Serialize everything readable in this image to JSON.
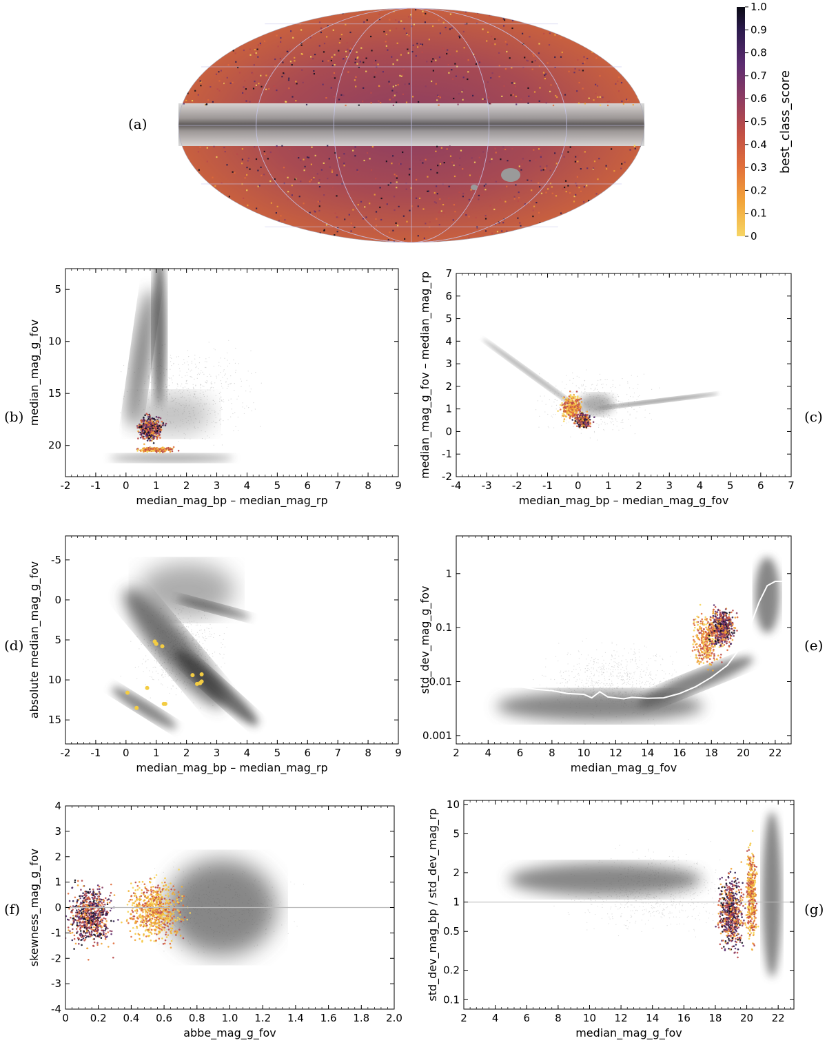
{
  "figure": {
    "colormap": [
      "#f5d45a",
      "#f0a437",
      "#e06b3a",
      "#b94a4a",
      "#8a3d62",
      "#5a2e6e",
      "#2e1d4e",
      "#0d0d1a"
    ],
    "background_color": "#c8c8c8"
  },
  "sky_map": {
    "label": "(a)",
    "colorbar": {
      "label": "best_class_score",
      "ticks": [
        "0",
        "0.1",
        "0.2",
        "0.3",
        "0.4",
        "0.5",
        "0.6",
        "0.7",
        "0.8",
        "0.9",
        "1.0"
      ]
    }
  },
  "chart_data": [
    {
      "id": "b",
      "label": "(b)",
      "type": "scatter",
      "xlabel": "median_mag_bp – median_mag_rp",
      "ylabel": "median_mag_g_fov",
      "xlim": [
        -2,
        9
      ],
      "ylim": [
        3,
        23
      ],
      "y_inverted": true,
      "xticks": [
        -2,
        -1,
        0,
        1,
        2,
        3,
        4,
        5,
        6,
        7,
        8,
        9
      ],
      "yticks": [
        5,
        10,
        15,
        20
      ],
      "yscale": "linear",
      "highlight_center": [
        0.7,
        18.5
      ]
    },
    {
      "id": "c",
      "label": "(c)",
      "type": "scatter",
      "xlabel": "median_mag_bp – median_mag_g_fov",
      "ylabel": "median_mag_g_fov – median_mag_rp",
      "xlim": [
        -4,
        7
      ],
      "ylim": [
        -2,
        7
      ],
      "y_inverted": false,
      "xticks": [
        -4,
        -3,
        -2,
        -1,
        0,
        1,
        2,
        3,
        4,
        5,
        6,
        7
      ],
      "yticks": [
        -2,
        -1,
        0,
        1,
        2,
        3,
        4,
        5,
        6,
        7
      ],
      "yscale": "linear",
      "highlight_center": [
        0.1,
        0.5
      ]
    },
    {
      "id": "d",
      "label": "(d)",
      "type": "scatter",
      "xlabel": "median_mag_bp – median_mag_rp",
      "ylabel": "absolute median_mag_g_fov",
      "xlim": [
        -2,
        9
      ],
      "ylim": [
        -8,
        18
      ],
      "y_inverted": true,
      "xticks": [
        -2,
        -1,
        0,
        1,
        2,
        3,
        4,
        5,
        6,
        7,
        8,
        9
      ],
      "yticks": [
        -5,
        0,
        5,
        10,
        15
      ],
      "ytick_labels": [
        "-5",
        "0",
        "5",
        "10",
        "15"
      ],
      "yscale": "linear",
      "highlight_points": [
        [
          0.95,
          5.2
        ],
        [
          1.0,
          5.5
        ],
        [
          1.2,
          5.8
        ],
        [
          2.2,
          9.4
        ],
        [
          2.5,
          9.3
        ],
        [
          2.5,
          10.2
        ],
        [
          2.35,
          10.5
        ],
        [
          2.45,
          10.4
        ],
        [
          0.05,
          11.6
        ],
        [
          0.7,
          11.0
        ],
        [
          0.35,
          13.5
        ],
        [
          1.25,
          13.0
        ],
        [
          1.3,
          13.0
        ]
      ]
    },
    {
      "id": "e",
      "label": "(e)",
      "type": "scatter",
      "xlabel": "median_mag_g_fov",
      "ylabel": "std_dev_mag_g_fov",
      "xlim": [
        2,
        23
      ],
      "ylim": [
        0.0007,
        5
      ],
      "y_inverted": false,
      "xticks": [
        2,
        4,
        6,
        8,
        10,
        12,
        14,
        16,
        18,
        20,
        22
      ],
      "yticks": [
        0.001,
        0.01,
        0.1,
        1
      ],
      "ytick_labels": [
        "0.001",
        "0.01",
        "0.1",
        "1"
      ],
      "yscale": "log",
      "highlight_center": [
        18.5,
        0.09
      ],
      "reference_curve": {
        "x": [
          6.0,
          7.0,
          8.0,
          9.0,
          10.0,
          10.5,
          11.0,
          11.5,
          12.0,
          12.5,
          13.0,
          14.0,
          15.0,
          16.0,
          17.0,
          18.0,
          19.0,
          20.0,
          20.5,
          21.0,
          21.5,
          22.0,
          23.0
        ],
        "y": [
          0.008,
          0.0072,
          0.0068,
          0.006,
          0.0058,
          0.005,
          0.0065,
          0.0052,
          0.005,
          0.0048,
          0.0051,
          0.0049,
          0.005,
          0.006,
          0.008,
          0.012,
          0.02,
          0.05,
          0.12,
          0.3,
          0.6,
          0.72,
          0.72
        ]
      }
    },
    {
      "id": "f",
      "label": "(f)",
      "type": "scatter",
      "xlabel": "abbe_mag_g_fov",
      "ylabel": "skewness_mag_g_fov",
      "xlim": [
        0,
        2
      ],
      "ylim": [
        -4,
        4
      ],
      "y_inverted": false,
      "xticks": [
        0,
        0.2,
        0.4,
        0.6,
        0.8,
        1.0,
        1.2,
        1.4,
        1.6,
        1.8,
        2.0
      ],
      "xtick_labels": [
        "0",
        "0.2",
        "0.4",
        "0.6",
        "0.8",
        "1.0",
        "1.2",
        "1.4",
        "1.6",
        "1.8",
        "2.0"
      ],
      "yticks": [
        -4,
        -3,
        -2,
        -1,
        0,
        1,
        2,
        3,
        4
      ],
      "yscale": "linear",
      "hline": 0,
      "highlight_center": [
        0.3,
        -0.2
      ]
    },
    {
      "id": "g",
      "label": "(g)",
      "type": "scatter",
      "xlabel": "median_mag_g_fov",
      "ylabel": "std_dev_mag_bp / std_dev_mag_rp",
      "xlim": [
        2,
        23
      ],
      "ylim": [
        0.08,
        11
      ],
      "y_inverted": false,
      "xticks": [
        2,
        4,
        6,
        8,
        10,
        12,
        14,
        16,
        18,
        20,
        22
      ],
      "yticks": [
        0.1,
        0.2,
        0.5,
        1,
        2,
        5,
        10
      ],
      "ytick_labels": [
        "0.1",
        "0.2",
        "0.5",
        "1",
        "2",
        "5",
        "10"
      ],
      "yscale": "log",
      "hline": 1,
      "highlight_center": [
        19.2,
        0.9
      ]
    }
  ]
}
